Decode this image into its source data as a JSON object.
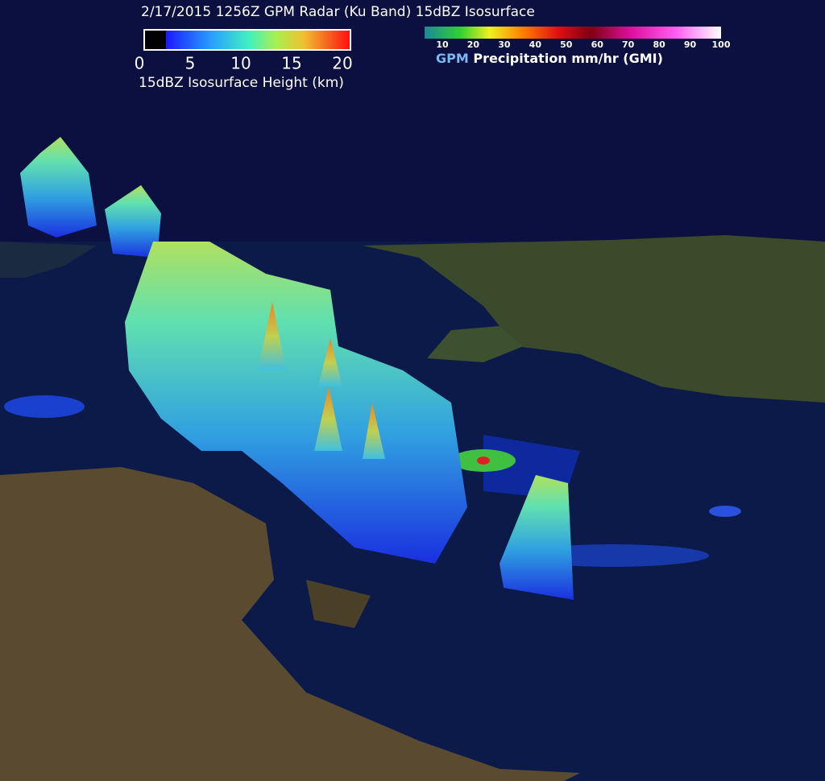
{
  "title": "2/17/2015 1256Z GPM Radar (Ku Band) 15dBZ Isosurface",
  "height_legend": {
    "ticks": [
      0,
      5,
      10,
      15,
      20
    ],
    "label": "15dBZ Isosurface Height (km)"
  },
  "precip_legend": {
    "ticks": [
      10,
      20,
      30,
      40,
      50,
      60,
      70,
      80,
      90,
      100
    ],
    "label_source": "GPM",
    "label": "Precipitation mm/hr (GMI)"
  }
}
